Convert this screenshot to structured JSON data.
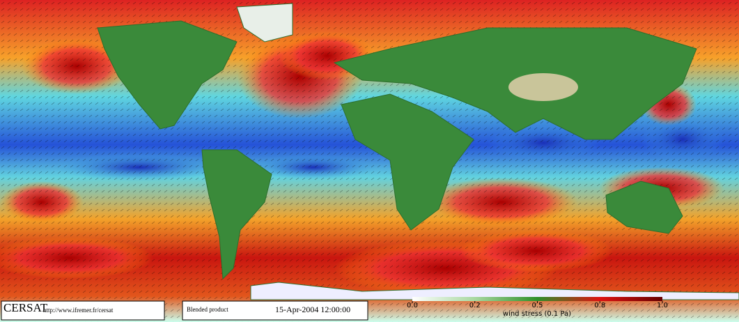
{
  "footer": {
    "brand": "CERSAT",
    "url": "http://www.ifremer.fr/cersat",
    "product": "Blended product",
    "date": "15-Apr-2004 12:00:00"
  },
  "colorbar": {
    "label": "wind stress (0.1 Pa)",
    "ticks": [
      {
        "value": 0,
        "label": "0.0"
      },
      {
        "value": 0.2,
        "label": "0.2"
      },
      {
        "value": 0.5,
        "label": "0.5"
      },
      {
        "value": 0.8,
        "label": "0.8"
      },
      {
        "value": 1,
        "label": "1.0"
      }
    ]
  }
}
